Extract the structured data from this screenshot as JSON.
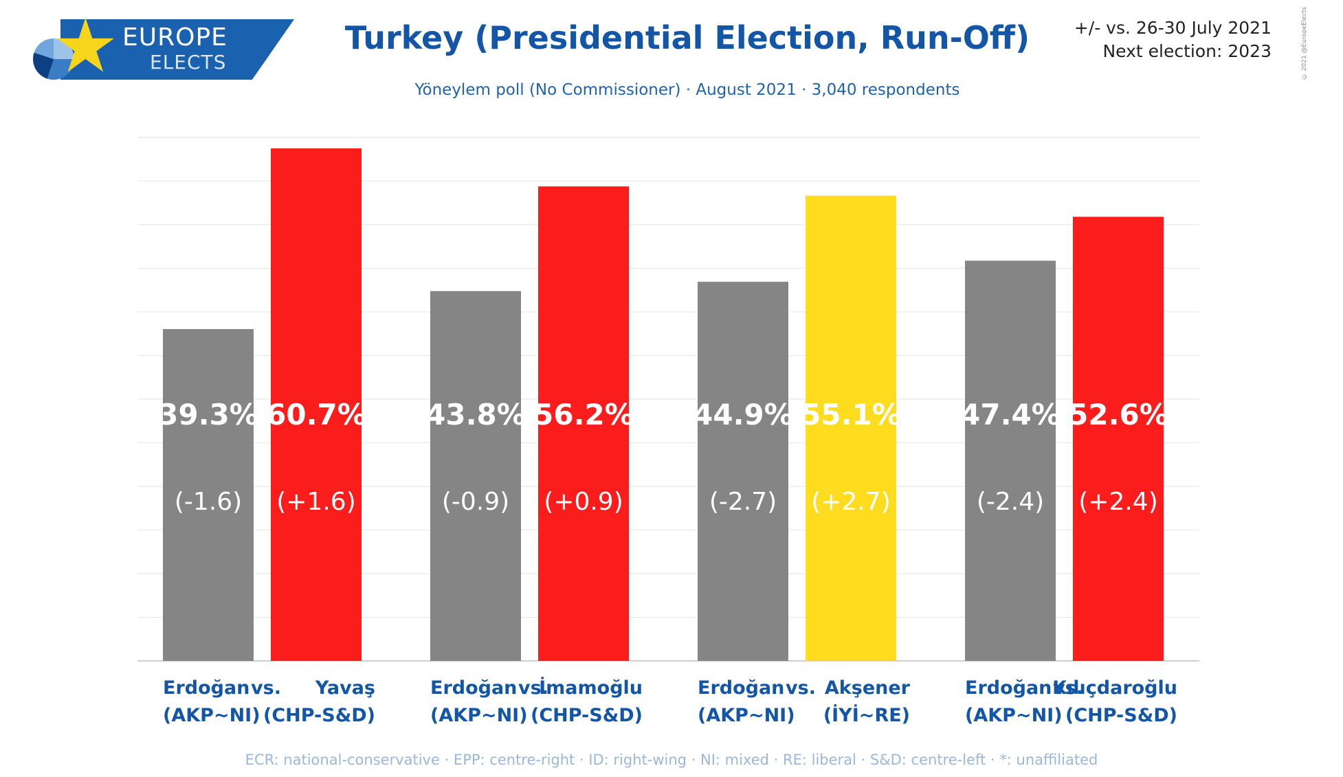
{
  "header": {
    "title": "Turkey (Presidential Election, Run-Off)",
    "subtitle": "Yöneylem poll (No Commissioner) · August 2021 · 3,040 respondents",
    "change_note": "+/- vs. 26-30 July 2021",
    "next_election": "Next election: 2023",
    "copyright": "© 2021 @EuropeElects"
  },
  "logo": {
    "word1": "EUROPE",
    "word2": "ELECTS"
  },
  "colors": {
    "gray": "#858585",
    "red": "#fb1c1c",
    "yellow": "#ffdc1e",
    "label_blue": "#1356a8"
  },
  "chart_data": {
    "type": "bar",
    "ylim": [
      0,
      62
    ],
    "grid": true,
    "groups": [
      {
        "label_line1": [
          "Erdoğan",
          "vs.",
          "Yavaş"
        ],
        "label_line2": [
          "(AKP~NI)",
          "(CHP-S&D)"
        ],
        "bars": [
          {
            "name": "Erdoğan",
            "value": 39.3,
            "value_label": "39.3%",
            "change": "(-1.6)",
            "color": "#858585"
          },
          {
            "name": "Yavaş",
            "value": 60.7,
            "value_label": "60.7%",
            "change": "(+1.6)",
            "color": "#fb1c1c"
          }
        ]
      },
      {
        "label_line1": [
          "Erdoğan",
          "vs.",
          "İmamoğlu"
        ],
        "label_line2": [
          "(AKP~NI)",
          "(CHP-S&D)"
        ],
        "bars": [
          {
            "name": "Erdoğan",
            "value": 43.8,
            "value_label": "43.8%",
            "change": "(-0.9)",
            "color": "#858585"
          },
          {
            "name": "İmamoğlu",
            "value": 56.2,
            "value_label": "56.2%",
            "change": "(+0.9)",
            "color": "#fb1c1c"
          }
        ]
      },
      {
        "label_line1": [
          "Erdoğan",
          "vs.",
          "Akşener"
        ],
        "label_line2": [
          "(AKP~NI)",
          "(İYİ~RE)"
        ],
        "bars": [
          {
            "name": "Erdoğan",
            "value": 44.9,
            "value_label": "44.9%",
            "change": "(-2.7)",
            "color": "#858585"
          },
          {
            "name": "Akşener",
            "value": 55.1,
            "value_label": "55.1%",
            "change": "(+2.7)",
            "color": "#ffdc1e"
          }
        ]
      },
      {
        "label_line1": [
          "Erdoğan",
          "vs.",
          "Kılıçdaroğlu"
        ],
        "label_line2": [
          "(AKP~NI)",
          "(CHP-S&D)"
        ],
        "bars": [
          {
            "name": "Erdoğan",
            "value": 47.4,
            "value_label": "47.4%",
            "change": "(-2.4)",
            "color": "#858585"
          },
          {
            "name": "Kılıçdaroğlu",
            "value": 52.6,
            "value_label": "52.6%",
            "change": "(+2.4)",
            "color": "#fb1c1c"
          }
        ]
      }
    ]
  },
  "footer": {
    "legend": "ECR: national-conservative · EPP: centre-right · ID: right-wing · NI: mixed · RE: liberal · S&D: centre-left · *: unaffiliated"
  }
}
